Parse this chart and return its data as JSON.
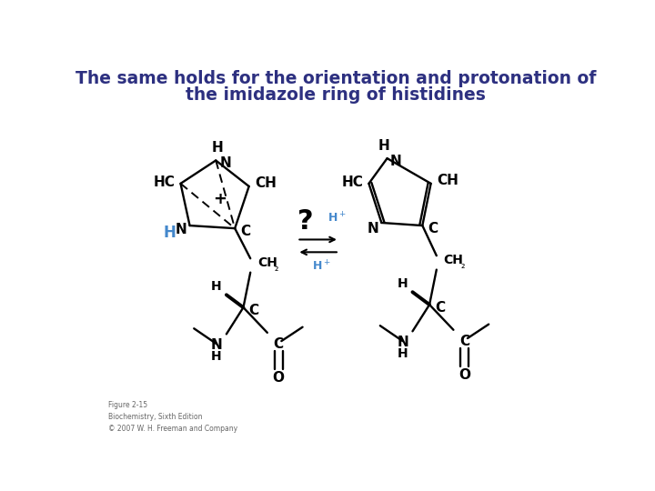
{
  "title_line1": "The same holds for the orientation and protonation of",
  "title_line2": "the imidazole ring of histidines",
  "title_color": "#2d3080",
  "title_fontsize": 13.5,
  "bg_color": "#ffffff",
  "caption": "Figure 2-15\nBiochemistry, Sixth Edition\n© 2007 W. H. Freeman and Company",
  "blue": "#4488cc",
  "black": "#000000"
}
